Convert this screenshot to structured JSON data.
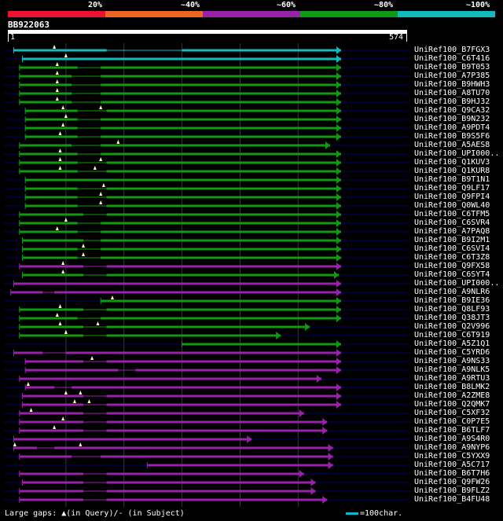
{
  "legend": {
    "labels": [
      "20%",
      "~40%",
      "~60%",
      "~80%",
      "~100%"
    ],
    "colors": [
      "#ee1133",
      "#ee6622",
      "#9922aa",
      "#119911",
      "#11bbbb"
    ]
  },
  "query": {
    "id": "BB922063",
    "start": "1",
    "end": "574",
    "length": 574
  },
  "hits": [
    {
      "name": "UniRef100_B7FGX3",
      "s": 10,
      "e": 574,
      "c": "#11bbbb",
      "m": [
        80
      ],
      "g": [
        [
          10,
          170
        ],
        [
          300,
          574
        ]
      ]
    },
    {
      "name": "UniRef100_C6T416",
      "s": 25,
      "e": 574,
      "c": "#11bbbb",
      "m": [
        100
      ],
      "g": [
        [
          25,
          574
        ]
      ]
    },
    {
      "name": "UniRef100_B9T053",
      "s": 20,
      "e": 574,
      "c": "#119911",
      "m": [
        85
      ],
      "g": [
        [
          20,
          120
        ],
        [
          160,
          574
        ]
      ]
    },
    {
      "name": "UniRef100_A7P385",
      "s": 20,
      "e": 574,
      "c": "#119911",
      "m": [
        85
      ],
      "g": [
        [
          20,
          110
        ],
        [
          160,
          574
        ]
      ]
    },
    {
      "name": "UniRef100_B9HWH3",
      "s": 20,
      "e": 574,
      "c": "#119911",
      "m": [
        85
      ],
      "g": [
        [
          20,
          110
        ],
        [
          160,
          574
        ]
      ]
    },
    {
      "name": "UniRef100_A8TU70",
      "s": 20,
      "e": 574,
      "c": "#119911",
      "m": [
        85
      ],
      "g": [
        [
          20,
          110
        ],
        [
          160,
          574
        ]
      ]
    },
    {
      "name": "UniRef100_B9HJ32",
      "s": 20,
      "e": 574,
      "c": "#119911",
      "m": [
        85
      ],
      "g": [
        [
          20,
          110
        ],
        [
          160,
          574
        ]
      ]
    },
    {
      "name": "UniRef100_Q9CA32",
      "s": 30,
      "e": 574,
      "c": "#119911",
      "m": [
        95,
        160
      ],
      "g": [
        [
          30,
          120
        ],
        [
          170,
          574
        ]
      ]
    },
    {
      "name": "UniRef100_B9N232",
      "s": 30,
      "e": 574,
      "c": "#119911",
      "m": [
        100
      ],
      "g": [
        [
          30,
          120
        ],
        [
          160,
          574
        ]
      ]
    },
    {
      "name": "UniRef100_A9PDT4",
      "s": 30,
      "e": 574,
      "c": "#119911",
      "m": [
        95
      ],
      "g": [
        [
          30,
          120
        ],
        [
          160,
          574
        ]
      ]
    },
    {
      "name": "UniRef100_B9S5F6",
      "s": 30,
      "e": 574,
      "c": "#119911",
      "m": [
        90
      ],
      "g": [
        [
          30,
          120
        ],
        [
          160,
          574
        ]
      ]
    },
    {
      "name": "UniRef100_A5AES8",
      "s": 20,
      "e": 555,
      "c": "#119911",
      "m": [
        190
      ],
      "g": [
        [
          20,
          110
        ],
        [
          160,
          555
        ]
      ]
    },
    {
      "name": "UniRef100_UPI000..",
      "s": 20,
      "e": 574,
      "c": "#119911",
      "m": [
        90
      ],
      "g": [
        [
          20,
          120
        ],
        [
          160,
          574
        ]
      ]
    },
    {
      "name": "UniRef100_Q1KUV3",
      "s": 20,
      "e": 574,
      "c": "#119911",
      "m": [
        90,
        160
      ],
      "g": [
        [
          20,
          120
        ],
        [
          170,
          574
        ]
      ]
    },
    {
      "name": "UniRef100_Q1KUR8",
      "s": 20,
      "e": 574,
      "c": "#119911",
      "m": [
        90,
        150
      ],
      "g": [
        [
          20,
          120
        ],
        [
          170,
          574
        ]
      ]
    },
    {
      "name": "UniRef100_B9T1N1",
      "s": 30,
      "e": 574,
      "c": "#119911",
      "m": [],
      "g": [
        [
          30,
          574
        ]
      ]
    },
    {
      "name": "UniRef100_Q9LF17",
      "s": 30,
      "e": 574,
      "c": "#119911",
      "m": [
        165
      ],
      "g": [
        [
          30,
          120
        ],
        [
          170,
          574
        ]
      ]
    },
    {
      "name": "UniRef100_Q9FPI4",
      "s": 30,
      "e": 574,
      "c": "#119911",
      "m": [
        160
      ],
      "g": [
        [
          30,
          120
        ],
        [
          170,
          574
        ]
      ]
    },
    {
      "name": "UniRef100_Q0WL40",
      "s": 30,
      "e": 574,
      "c": "#119911",
      "m": [
        160
      ],
      "g": [
        [
          30,
          120
        ],
        [
          170,
          574
        ]
      ]
    },
    {
      "name": "UniRef100_C6TFM5",
      "s": 20,
      "e": 574,
      "c": "#119911",
      "m": [],
      "g": [
        [
          20,
          130
        ],
        [
          170,
          574
        ]
      ]
    },
    {
      "name": "UniRef100_C6SVR4",
      "s": 20,
      "e": 574,
      "c": "#119911",
      "m": [
        100
      ],
      "g": [
        [
          20,
          120
        ],
        [
          160,
          574
        ]
      ]
    },
    {
      "name": "UniRef100_A7PAQ8",
      "s": 20,
      "e": 574,
      "c": "#119911",
      "m": [
        85
      ],
      "g": [
        [
          20,
          120
        ],
        [
          160,
          574
        ]
      ]
    },
    {
      "name": "UniRef100_B9I2M1",
      "s": 25,
      "e": 574,
      "c": "#119911",
      "m": [],
      "g": [
        [
          25,
          130
        ],
        [
          160,
          574
        ]
      ]
    },
    {
      "name": "UniRef100_C6SVI4",
      "s": 25,
      "e": 574,
      "c": "#119911",
      "m": [
        130
      ],
      "g": [
        [
          25,
          120
        ],
        [
          160,
          574
        ]
      ]
    },
    {
      "name": "UniRef100_C6T3Z8",
      "s": 25,
      "e": 574,
      "c": "#119911",
      "m": [
        130
      ],
      "g": [
        [
          25,
          120
        ],
        [
          160,
          574
        ]
      ]
    },
    {
      "name": "UniRef100_Q9FX58",
      "s": 20,
      "e": 574,
      "c": "#9922aa",
      "m": [
        95
      ],
      "g": [
        [
          20,
          130
        ],
        [
          170,
          574
        ]
      ]
    },
    {
      "name": "UniRef100_C6SYT4",
      "s": 25,
      "e": 570,
      "c": "#119911",
      "m": [
        95
      ],
      "g": [
        [
          25,
          130
        ],
        [
          170,
          570
        ]
      ]
    },
    {
      "name": "UniRef100_UPI000..",
      "s": 10,
      "e": 574,
      "c": "#9922aa",
      "m": [],
      "g": [
        [
          10,
          574
        ]
      ]
    },
    {
      "name": "UniRef100_A9NLR6",
      "s": 5,
      "e": 574,
      "c": "#9922aa",
      "m": [],
      "g": [
        [
          5,
          60
        ],
        [
          80,
          574
        ]
      ]
    },
    {
      "name": "UniRef100_B9IE36",
      "s": 160,
      "e": 574,
      "c": "#119911",
      "m": [
        180
      ],
      "g": [
        [
          160,
          574
        ]
      ]
    },
    {
      "name": "UniRef100_Q8LF93",
      "s": 20,
      "e": 574,
      "c": "#119911",
      "m": [
        90
      ],
      "g": [
        [
          20,
          130
        ],
        [
          170,
          574
        ]
      ]
    },
    {
      "name": "UniRef100_Q38JT3",
      "s": 20,
      "e": 574,
      "c": "#119911",
      "m": [
        85
      ],
      "g": [
        [
          20,
          120
        ],
        [
          160,
          574
        ]
      ]
    },
    {
      "name": "UniRef100_Q2V996",
      "s": 20,
      "e": 520,
      "c": "#119911",
      "m": [
        90,
        155
      ],
      "g": [
        [
          20,
          130
        ],
        [
          170,
          520
        ]
      ]
    },
    {
      "name": "UniRef100_C6T919",
      "s": 20,
      "e": 470,
      "c": "#119911",
      "m": [
        100
      ],
      "g": [
        [
          20,
          130
        ],
        [
          170,
          470
        ]
      ]
    },
    {
      "name": "UniRef100_A5Z1Q1",
      "s": 300,
      "e": 574,
      "c": "#119911",
      "m": [],
      "g": [
        [
          300,
          574
        ]
      ]
    },
    {
      "name": "UniRef100_C5YRD6",
      "s": 10,
      "e": 574,
      "c": "#9922aa",
      "m": [],
      "g": [
        [
          10,
          60
        ],
        [
          100,
          574
        ]
      ]
    },
    {
      "name": "UniRef100_A9NS33",
      "s": 30,
      "e": 574,
      "c": "#9922aa",
      "m": [
        145
      ],
      "g": [
        [
          30,
          130
        ],
        [
          170,
          574
        ]
      ]
    },
    {
      "name": "UniRef100_A9NLK5",
      "s": 30,
      "e": 574,
      "c": "#9922aa",
      "m": [],
      "g": [
        [
          30,
          190
        ],
        [
          220,
          574
        ]
      ]
    },
    {
      "name": "UniRef100_A9RTU3",
      "s": 20,
      "e": 540,
      "c": "#9922aa",
      "m": [],
      "g": [
        [
          20,
          540
        ]
      ]
    },
    {
      "name": "UniRef100_B8LMK2",
      "s": 30,
      "e": 574,
      "c": "#9922aa",
      "m": [
        35
      ],
      "g": [
        [
          30,
          80
        ],
        [
          110,
          574
        ]
      ]
    },
    {
      "name": "UniRef100_A2ZME8",
      "s": 25,
      "e": 574,
      "c": "#9922aa",
      "m": [
        100,
        125
      ],
      "g": [
        [
          25,
          130
        ],
        [
          170,
          574
        ]
      ]
    },
    {
      "name": "UniRef100_Q2QMK7",
      "s": 25,
      "e": 574,
      "c": "#9922aa",
      "m": [
        115,
        140
      ],
      "g": [
        [
          25,
          130
        ],
        [
          170,
          574
        ]
      ]
    },
    {
      "name": "UniRef100_C5XF32",
      "s": 20,
      "e": 510,
      "c": "#9922aa",
      "m": [
        40
      ],
      "g": [
        [
          20,
          130
        ],
        [
          170,
          510
        ]
      ]
    },
    {
      "name": "UniRef100_C0P7E5",
      "s": 20,
      "e": 550,
      "c": "#9922aa",
      "m": [
        95
      ],
      "g": [
        [
          20,
          130
        ],
        [
          170,
          550
        ]
      ]
    },
    {
      "name": "UniRef100_B6TLF7",
      "s": 20,
      "e": 550,
      "c": "#9922aa",
      "m": [
        80
      ],
      "g": [
        [
          20,
          130
        ],
        [
          170,
          550
        ]
      ]
    },
    {
      "name": "UniRef100_A9S4R0",
      "s": 10,
      "e": 420,
      "c": "#9922aa",
      "m": [],
      "g": [
        [
          10,
          420
        ]
      ]
    },
    {
      "name": "UniRef100_A9NYP6",
      "s": 10,
      "e": 560,
      "c": "#9922aa",
      "m": [
        12,
        125
      ],
      "g": [
        [
          10,
          50
        ],
        [
          80,
          560
        ]
      ]
    },
    {
      "name": "UniRef100_C5YXX9",
      "s": 20,
      "e": 560,
      "c": "#9922aa",
      "m": [],
      "g": [
        [
          20,
          110
        ],
        [
          160,
          560
        ]
      ]
    },
    {
      "name": "UniRef100_A5C717",
      "s": 240,
      "e": 560,
      "c": "#9922aa",
      "m": [],
      "g": [
        [
          240,
          560
        ]
      ]
    },
    {
      "name": "UniRef100_B6T7H6",
      "s": 20,
      "e": 510,
      "c": "#9922aa",
      "m": [],
      "g": [
        [
          20,
          130
        ],
        [
          170,
          510
        ]
      ]
    },
    {
      "name": "UniRef100_Q9FW26",
      "s": 25,
      "e": 530,
      "c": "#9922aa",
      "m": [],
      "g": [
        [
          25,
          130
        ],
        [
          170,
          530
        ]
      ]
    },
    {
      "name": "UniRef100_B9FLZ2",
      "s": 20,
      "e": 530,
      "c": "#9922aa",
      "m": [],
      "g": [
        [
          20,
          130
        ],
        [
          170,
          530
        ]
      ]
    },
    {
      "name": "UniRef100_B4FU48",
      "s": 20,
      "e": 550,
      "c": "#9922aa",
      "m": [],
      "g": [
        [
          20,
          130
        ],
        [
          170,
          550
        ]
      ]
    }
  ],
  "footer": {
    "text": "Large gaps: ▲(in Query)/- (in Subject)"
  },
  "scale": {
    "label": "=100char.",
    "color": "#00bcd4"
  }
}
